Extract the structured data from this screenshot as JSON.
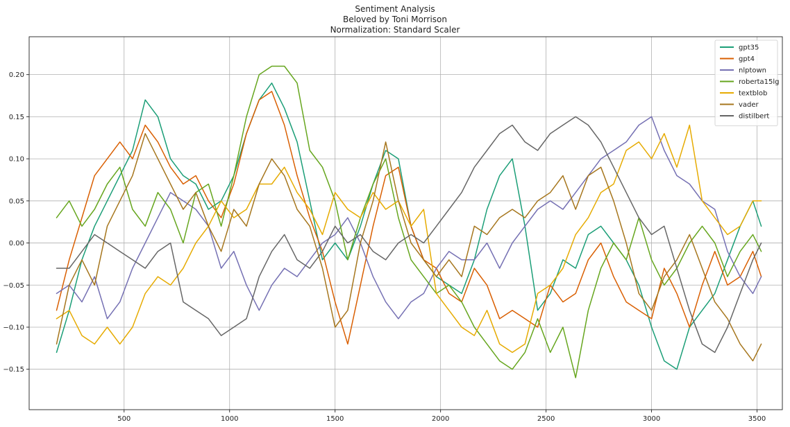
{
  "chart_data": {
    "type": "line",
    "title": [
      "Sentiment Analysis",
      "Beloved by Toni Morrison",
      "Normalization: Standard Scaler"
    ],
    "xlabel": "",
    "ylabel": "",
    "xlim": [
      50,
      3620
    ],
    "ylim": [
      -0.198,
      0.245
    ],
    "x_ticks": [
      500,
      1000,
      1500,
      2000,
      2500,
      3000,
      3500
    ],
    "y_ticks": [
      -0.15,
      -0.1,
      -0.05,
      0.0,
      0.05,
      0.1,
      0.15,
      0.2
    ],
    "x_tick_labels": [
      "500",
      "1000",
      "1500",
      "2000",
      "2500",
      "3000",
      "3500"
    ],
    "y_tick_labels": [
      "−0.15",
      "−0.10",
      "−0.05",
      "0.00",
      "0.05",
      "0.10",
      "0.15",
      "0.20"
    ],
    "grid": true,
    "legend_position": "top-right",
    "x": [
      180,
      240,
      300,
      360,
      420,
      480,
      540,
      600,
      660,
      720,
      780,
      840,
      900,
      960,
      1020,
      1080,
      1140,
      1200,
      1260,
      1320,
      1380,
      1440,
      1500,
      1560,
      1620,
      1680,
      1740,
      1800,
      1860,
      1920,
      1980,
      2040,
      2100,
      2160,
      2220,
      2280,
      2340,
      2400,
      2460,
      2520,
      2580,
      2640,
      2700,
      2760,
      2820,
      2880,
      2940,
      3000,
      3060,
      3120,
      3180,
      3240,
      3300,
      3360,
      3420,
      3480,
      3520
    ],
    "series": [
      {
        "name": "gpt35",
        "color": "#1b9e77",
        "values": [
          -0.13,
          -0.08,
          -0.02,
          0.02,
          0.05,
          0.08,
          0.11,
          0.17,
          0.15,
          0.1,
          0.08,
          0.07,
          0.04,
          0.05,
          0.08,
          0.13,
          0.17,
          0.19,
          0.16,
          0.12,
          0.05,
          -0.02,
          0.0,
          -0.02,
          0.02,
          0.07,
          0.11,
          0.1,
          0.02,
          -0.02,
          -0.04,
          -0.05,
          -0.06,
          -0.02,
          0.04,
          0.08,
          0.1,
          0.02,
          -0.08,
          -0.06,
          -0.02,
          -0.03,
          0.01,
          0.02,
          0.0,
          -0.02,
          -0.05,
          -0.1,
          -0.14,
          -0.15,
          -0.1,
          -0.08,
          -0.06,
          -0.02,
          0.02,
          0.05,
          0.02
        ]
      },
      {
        "name": "gpt4",
        "color": "#d95f02",
        "values": [
          -0.08,
          -0.02,
          0.03,
          0.08,
          0.1,
          0.12,
          0.1,
          0.14,
          0.12,
          0.09,
          0.07,
          0.08,
          0.05,
          0.03,
          0.07,
          0.13,
          0.17,
          0.18,
          0.14,
          0.08,
          0.03,
          -0.01,
          -0.07,
          -0.12,
          -0.05,
          0.02,
          0.08,
          0.09,
          0.02,
          -0.02,
          -0.03,
          -0.06,
          -0.07,
          -0.03,
          -0.05,
          -0.09,
          -0.08,
          -0.09,
          -0.1,
          -0.05,
          -0.07,
          -0.06,
          -0.02,
          0.0,
          -0.04,
          -0.07,
          -0.08,
          -0.09,
          -0.03,
          -0.06,
          -0.1,
          -0.05,
          -0.01,
          -0.05,
          -0.04,
          -0.01,
          -0.04
        ]
      },
      {
        "name": "nlptown",
        "color": "#7570b3",
        "values": [
          -0.06,
          -0.05,
          -0.07,
          -0.04,
          -0.09,
          -0.07,
          -0.03,
          0.0,
          0.03,
          0.06,
          0.05,
          0.04,
          0.02,
          -0.03,
          -0.01,
          -0.05,
          -0.08,
          -0.05,
          -0.03,
          -0.04,
          -0.02,
          0.0,
          0.01,
          0.03,
          0.0,
          -0.04,
          -0.07,
          -0.09,
          -0.07,
          -0.06,
          -0.03,
          -0.01,
          -0.02,
          -0.02,
          0.0,
          -0.03,
          0.0,
          0.02,
          0.04,
          0.05,
          0.04,
          0.06,
          0.08,
          0.1,
          0.11,
          0.12,
          0.14,
          0.15,
          0.11,
          0.08,
          0.07,
          0.05,
          0.04,
          -0.01,
          -0.04,
          -0.06,
          -0.04
        ]
      },
      {
        "name": "roberta15lg",
        "color": "#66a61e",
        "values": [
          0.03,
          0.05,
          0.02,
          0.04,
          0.07,
          0.09,
          0.04,
          0.02,
          0.06,
          0.04,
          0.0,
          0.06,
          0.07,
          0.02,
          0.08,
          0.15,
          0.2,
          0.21,
          0.21,
          0.19,
          0.11,
          0.09,
          0.05,
          -0.02,
          0.03,
          0.07,
          0.1,
          0.03,
          -0.02,
          -0.04,
          -0.06,
          -0.05,
          -0.07,
          -0.1,
          -0.12,
          -0.14,
          -0.15,
          -0.13,
          -0.09,
          -0.13,
          -0.1,
          -0.16,
          -0.08,
          -0.03,
          0.0,
          -0.02,
          0.03,
          -0.02,
          -0.05,
          -0.03,
          0.0,
          0.02,
          0.0,
          -0.04,
          -0.01,
          0.01,
          -0.01
        ]
      },
      {
        "name": "textblob",
        "color": "#e6ab02",
        "values": [
          -0.09,
          -0.08,
          -0.11,
          -0.12,
          -0.1,
          -0.12,
          -0.1,
          -0.06,
          -0.04,
          -0.05,
          -0.03,
          0.0,
          0.02,
          0.05,
          0.03,
          0.04,
          0.07,
          0.07,
          0.09,
          0.06,
          0.04,
          0.01,
          0.06,
          0.04,
          0.03,
          0.06,
          0.04,
          0.05,
          0.02,
          0.04,
          -0.06,
          -0.08,
          -0.1,
          -0.11,
          -0.08,
          -0.12,
          -0.13,
          -0.12,
          -0.06,
          -0.05,
          -0.03,
          0.01,
          0.03,
          0.06,
          0.07,
          0.11,
          0.12,
          0.1,
          0.13,
          0.09,
          0.14,
          0.05,
          0.03,
          0.01,
          0.02,
          0.05,
          0.05
        ]
      },
      {
        "name": "vader",
        "color": "#a6761d",
        "values": [
          -0.12,
          -0.05,
          -0.02,
          -0.05,
          0.02,
          0.05,
          0.08,
          0.13,
          0.1,
          0.07,
          0.04,
          0.06,
          0.02,
          -0.01,
          0.04,
          0.02,
          0.07,
          0.1,
          0.08,
          0.04,
          0.02,
          -0.03,
          -0.1,
          -0.08,
          0.0,
          0.05,
          0.12,
          0.05,
          0.0,
          -0.02,
          -0.04,
          -0.02,
          -0.04,
          0.02,
          0.01,
          0.03,
          0.04,
          0.03,
          0.05,
          0.06,
          0.08,
          0.04,
          0.08,
          0.09,
          0.05,
          0.0,
          -0.06,
          -0.08,
          -0.04,
          -0.02,
          0.01,
          -0.03,
          -0.07,
          -0.09,
          -0.12,
          -0.14,
          -0.12
        ]
      },
      {
        "name": "distilbert",
        "color": "#666666",
        "values": [
          -0.03,
          -0.03,
          -0.01,
          0.01,
          0.0,
          -0.01,
          -0.02,
          -0.03,
          -0.01,
          0.0,
          -0.07,
          -0.08,
          -0.09,
          -0.11,
          -0.1,
          -0.09,
          -0.04,
          -0.01,
          0.01,
          -0.02,
          -0.03,
          -0.01,
          0.02,
          0.0,
          0.01,
          -0.01,
          -0.02,
          0.0,
          0.01,
          0.0,
          0.02,
          0.04,
          0.06,
          0.09,
          0.11,
          0.13,
          0.14,
          0.12,
          0.11,
          0.13,
          0.14,
          0.15,
          0.14,
          0.12,
          0.09,
          0.06,
          0.03,
          0.01,
          0.02,
          -0.03,
          -0.08,
          -0.12,
          -0.13,
          -0.1,
          -0.06,
          -0.02,
          0.0
        ]
      }
    ]
  }
}
